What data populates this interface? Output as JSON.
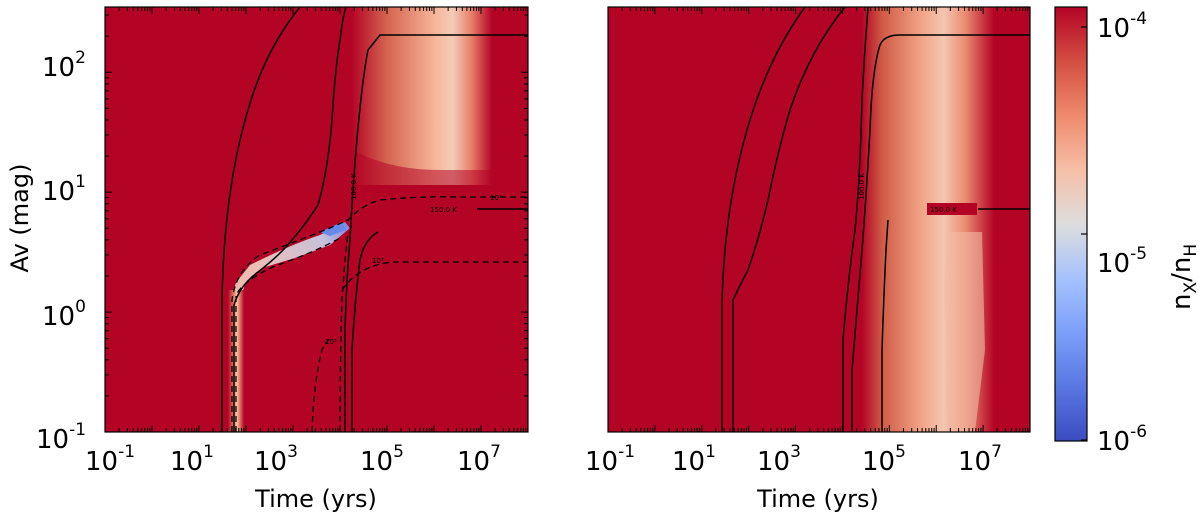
{
  "chart_data": [
    {
      "type": "heatmap",
      "panel": "left",
      "xlabel": "Time (yrs)",
      "ylabel": "Av (mag)",
      "xscale": "log",
      "yscale": "log",
      "xlim": [
        0.1,
        100000000
      ],
      "ylim": [
        0.1,
        350
      ],
      "x_ticks": [
        {
          "base": "10",
          "exp": "-1"
        },
        {
          "base": "10",
          "exp": "1"
        },
        {
          "base": "10",
          "exp": "3"
        },
        {
          "base": "10",
          "exp": "5"
        },
        {
          "base": "10",
          "exp": "7"
        }
      ],
      "y_ticks": [
        {
          "base": "10",
          "exp": "-1"
        },
        {
          "base": "10",
          "exp": "0"
        },
        {
          "base": "10",
          "exp": "1"
        },
        {
          "base": "10",
          "exp": "2"
        }
      ],
      "background_value": 0.0001,
      "features": [
        {
          "kind": "depletion-band",
          "x_range": [
            60,
            100
          ],
          "y_range": [
            0.1,
            3
          ],
          "min_value": 3e-05
        },
        {
          "kind": "depletion-ramp",
          "x_range": [
            60,
            10000
          ],
          "y_range": [
            3,
            8
          ],
          "min_value": 3e-06
        },
        {
          "kind": "depletion-column",
          "x_range": [
            20000,
            15000000
          ],
          "y_range": [
            15,
            350
          ],
          "min_value": 3e-05
        }
      ],
      "temperature_contours": [
        {
          "label": "",
          "style": "solid"
        },
        {
          "label": "100.0 K",
          "style": "solid"
        },
        {
          "label": "150.0 K",
          "style": "solid"
        },
        {
          "label": "",
          "style": "solid"
        }
      ],
      "density_contours": [
        {
          "label": "10²",
          "style": "dashed"
        },
        {
          "label": "10³",
          "style": "dashed"
        },
        {
          "label": "10⁵",
          "style": "dashed"
        }
      ]
    },
    {
      "type": "heatmap",
      "panel": "right",
      "xlabel": "Time (yrs)",
      "ylabel": "",
      "xscale": "log",
      "yscale": "log",
      "xlim": [
        0.1,
        100000000
      ],
      "ylim": [
        0.1,
        350
      ],
      "x_ticks": [
        {
          "base": "10",
          "exp": "-1"
        },
        {
          "base": "10",
          "exp": "1"
        },
        {
          "base": "10",
          "exp": "3"
        },
        {
          "base": "10",
          "exp": "5"
        },
        {
          "base": "10",
          "exp": "7"
        }
      ],
      "background_value": 0.0001,
      "features": [
        {
          "kind": "depletion-column",
          "x_range": [
            50000,
            15000000
          ],
          "y_range": [
            0.1,
            350
          ],
          "min_value": 3e-05
        }
      ],
      "temperature_contours": [
        {
          "label": "",
          "style": "solid"
        },
        {
          "label": "100.0 K",
          "style": "solid"
        },
        {
          "label": "150.0 K",
          "style": "solid"
        },
        {
          "label": "",
          "style": "solid"
        }
      ]
    }
  ],
  "colorbar": {
    "title_base": "n",
    "title_num_sub": "X",
    "title_den_sub": "H",
    "scale": "log",
    "range": [
      1e-06,
      0.0001
    ],
    "colormap": "coolwarm",
    "ticks": [
      {
        "base": "10",
        "exp": "-4"
      },
      {
        "base": "10",
        "exp": "-5"
      },
      {
        "base": "10",
        "exp": "-6"
      }
    ]
  },
  "colors": {
    "background": "#b40426",
    "mid": "#f4c5ad",
    "white": "#dddddd",
    "cool": "#3b4cc0"
  }
}
